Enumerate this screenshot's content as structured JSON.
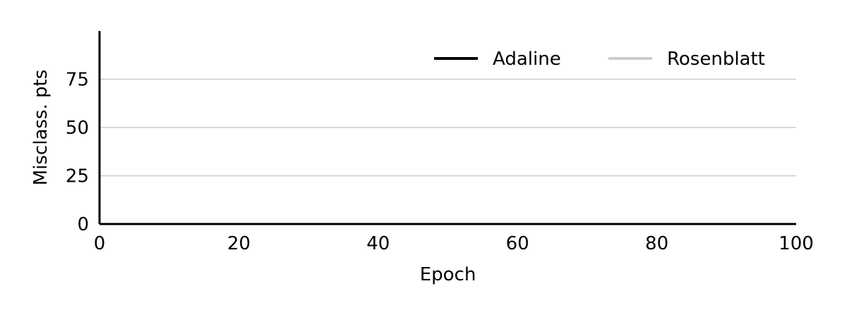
{
  "chart_data": {
    "type": "line",
    "title": "",
    "xlabel": "Epoch",
    "ylabel": "Misclass. pts",
    "xlim": [
      0,
      100
    ],
    "ylim": [
      0,
      100
    ],
    "xticks": [
      0,
      20,
      40,
      60,
      80,
      100
    ],
    "yticks": [
      0,
      25,
      50,
      75
    ],
    "grid": "horizontal",
    "legend_position": "top-right",
    "series": [
      {
        "name": "Adaline",
        "color": "#000000",
        "x": [
          0,
          100
        ],
        "y": [
          0,
          0
        ]
      },
      {
        "name": "Rosenblatt",
        "color": "#cccccc",
        "x": [
          0,
          100
        ],
        "y": [
          0,
          0
        ]
      }
    ]
  }
}
